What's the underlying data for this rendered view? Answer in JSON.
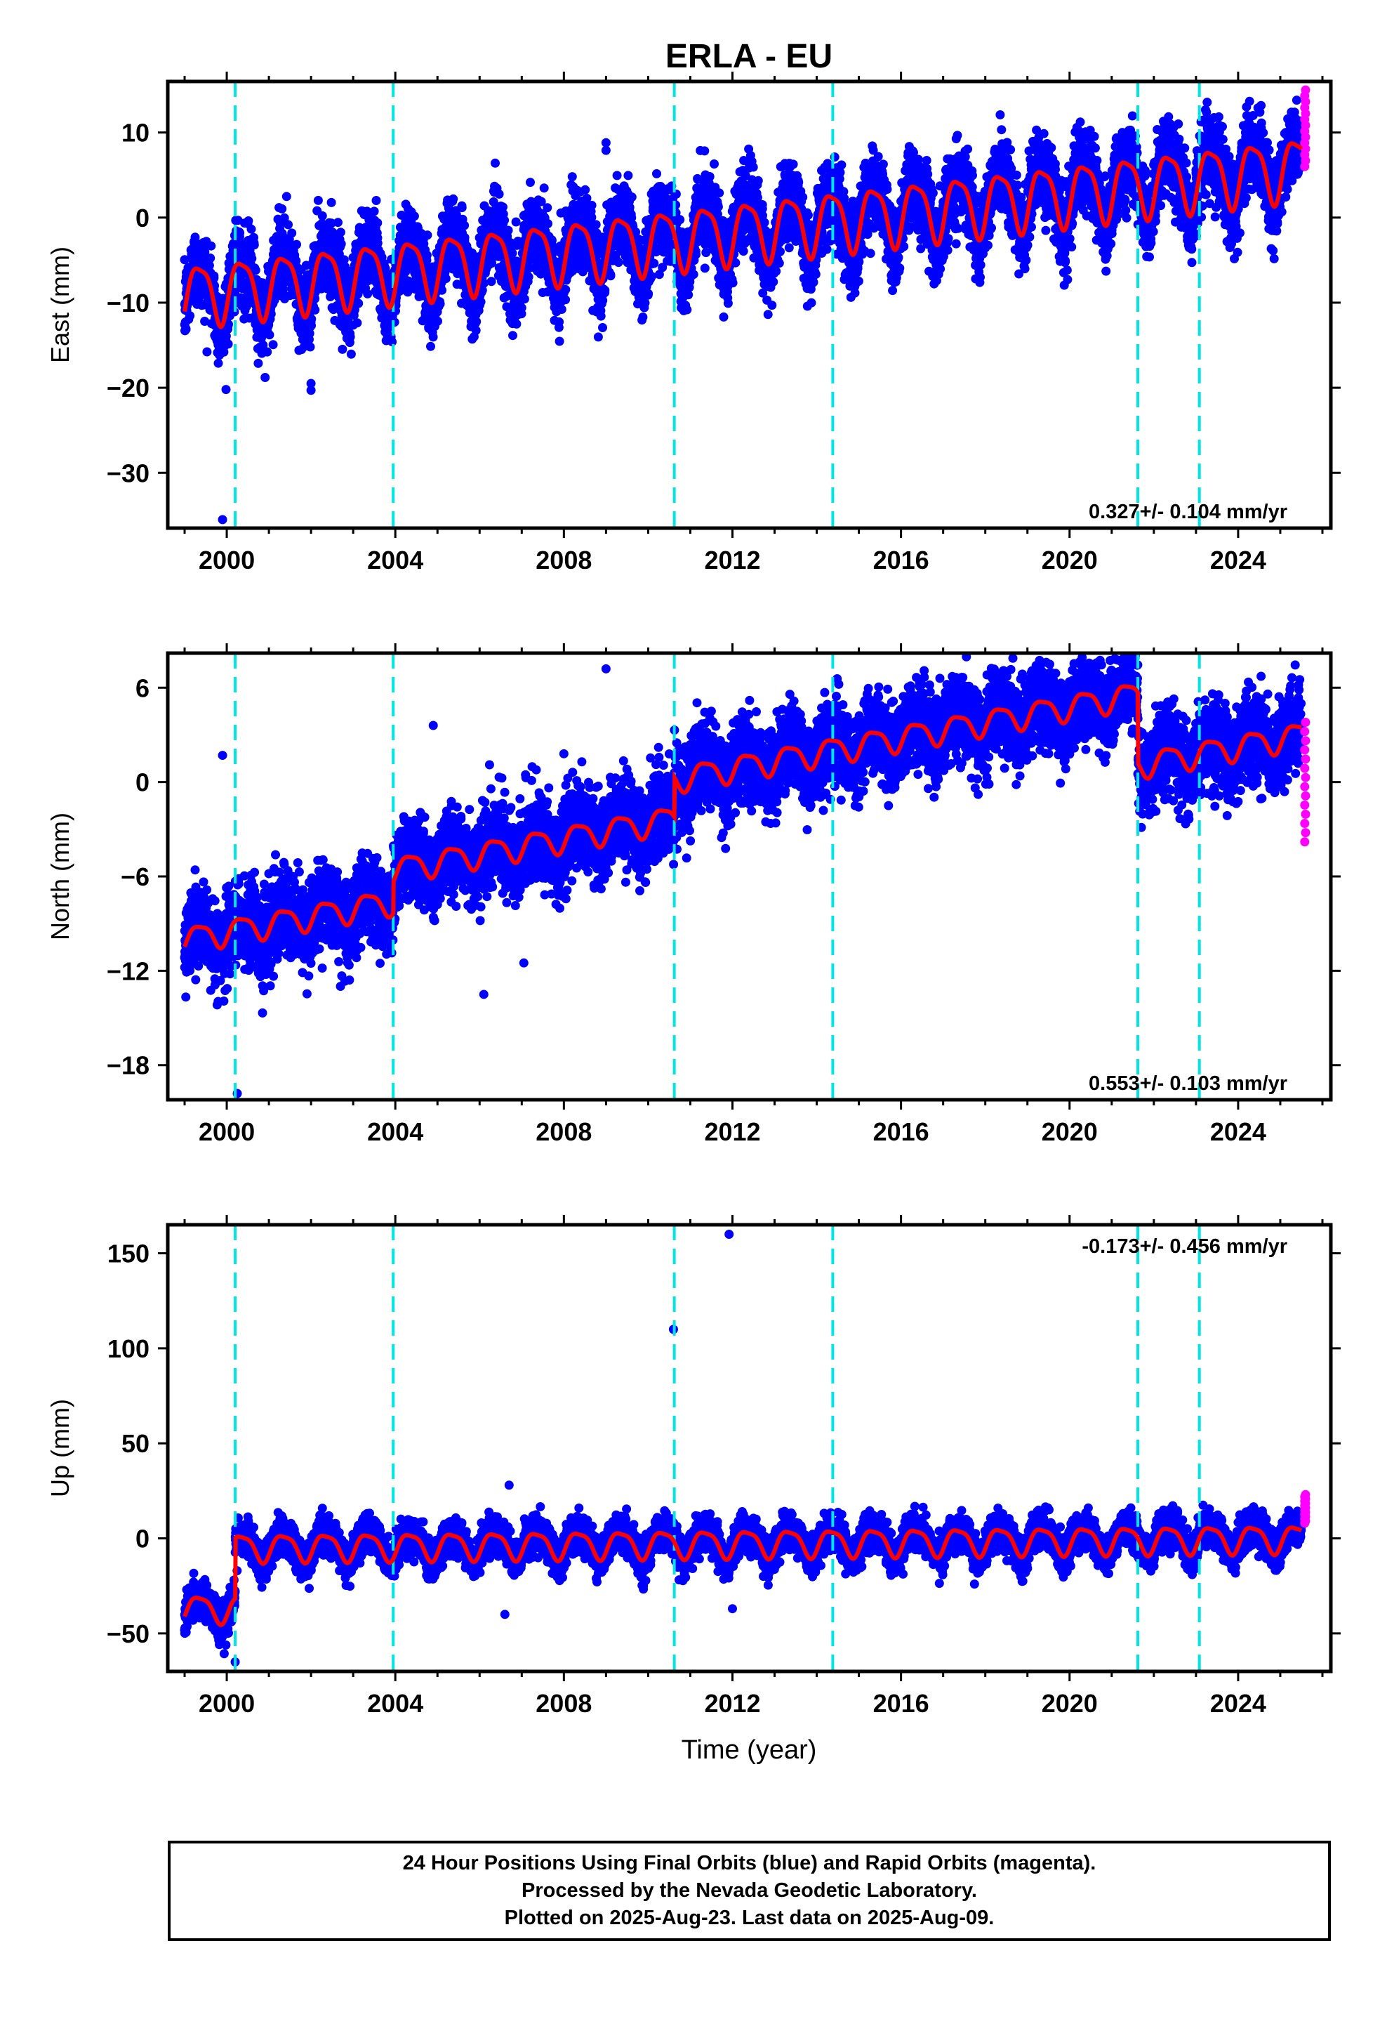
{
  "title": "ERLA - EU",
  "colors": {
    "final": "#0000ff",
    "rapid": "#ff00ff",
    "model": "#ff0000",
    "breaks": "#00e6e6",
    "axes": "#000000"
  },
  "x_axis": {
    "label": "Time (year)",
    "ticks": [
      2000,
      2004,
      2008,
      2012,
      2016,
      2020,
      2024
    ],
    "range": [
      1998.6,
      2026.2
    ]
  },
  "break_years": [
    2000.2,
    2003.95,
    2010.62,
    2014.38,
    2021.62,
    2023.08
  ],
  "chart_data": [
    {
      "type": "scatter",
      "component": "east",
      "ylabel": "East (mm)",
      "ylim": [
        -36.5,
        16
      ],
      "yticks": [
        10,
        0,
        -10,
        -20,
        -30
      ],
      "velocity_label": "0.327+/- 0.104 mm/yr",
      "velocity_position": "bottom-right",
      "series": [
        {
          "label": "Final Orbits (blue)",
          "x_range": [
            1999.0,
            2025.5
          ],
          "y_at_start": -9,
          "y_at_end": 6,
          "seasonal_amplitude": 3.5,
          "scatter": 2.2
        },
        {
          "label": "Rapid Orbits (magenta)",
          "x_range": [
            2025.5,
            2025.62
          ],
          "y_range": [
            6,
            15
          ]
        }
      ],
      "outliers": [
        [
          1999.9,
          -35.5
        ],
        [
          2002.0,
          -19.5
        ],
        [
          2002.0,
          -20.3
        ],
        [
          2009.0,
          8.8
        ],
        [
          2009.0,
          7.9
        ],
        [
          2003.9,
          -14.0
        ]
      ]
    },
    {
      "type": "scatter",
      "component": "north",
      "ylabel": "North (mm)",
      "ylim": [
        -20.2,
        8.2
      ],
      "yticks": [
        6,
        0,
        -6,
        -12,
        -18
      ],
      "velocity_label": "0.553+/- 0.103 mm/yr",
      "velocity_position": "bottom-right",
      "series": [
        {
          "label": "Final Orbits (blue)",
          "x_range": [
            1999.0,
            2025.5
          ],
          "y_at_start": -10,
          "y_at_end": 3,
          "seasonal_amplitude": 0.8,
          "scatter": 1.3
        },
        {
          "label": "Rapid Orbits (magenta)",
          "x_range": [
            2025.5,
            2025.62
          ],
          "y_range": [
            -3.8,
            3.8
          ]
        }
      ],
      "offsets_at_breaks": [
        [
          2003.95,
          2.0
        ],
        [
          2010.62,
          2.5
        ],
        [
          2021.62,
          -4.5
        ]
      ],
      "outliers": [
        [
          1999.9,
          1.7
        ],
        [
          2000.25,
          -19.8
        ],
        [
          2009.0,
          7.2
        ],
        [
          2004.9,
          3.6
        ],
        [
          2007.05,
          -11.5
        ],
        [
          2006.1,
          -13.5
        ],
        [
          2008.0,
          1.8
        ]
      ]
    },
    {
      "type": "scatter",
      "component": "up",
      "ylabel": "Up (mm)",
      "ylim": [
        -70,
        165
      ],
      "yticks": [
        150,
        100,
        50,
        0,
        -50
      ],
      "velocity_label": "-0.173+/- 0.456 mm/yr",
      "velocity_position": "top-right",
      "series": [
        {
          "label": "Final Orbits (blue)",
          "x_range": [
            1999.0,
            2025.5
          ],
          "y_at_start": -37,
          "y_at_end": 0,
          "seasonal_amplitude": 7,
          "scatter": 4.5
        },
        {
          "label": "Rapid Orbits (magenta)",
          "x_range": [
            2025.5,
            2025.62
          ],
          "y_range": [
            8,
            23
          ]
        }
      ],
      "offsets_at_breaks": [
        [
          2000.2,
          32
        ]
      ],
      "outliers": [
        [
          2011.92,
          160
        ],
        [
          2010.6,
          110
        ],
        [
          2000.2,
          -65
        ],
        [
          2006.6,
          -40
        ],
        [
          2006.7,
          28
        ],
        [
          2012.0,
          -37
        ]
      ]
    }
  ],
  "footer": {
    "line1": "24 Hour Positions Using Final Orbits (blue) and Rapid Orbits (magenta).",
    "line2": "Processed by the Nevada Geodetic Laboratory.",
    "line3": "Plotted on 2025-Aug-23. Last data on 2025-Aug-09."
  }
}
